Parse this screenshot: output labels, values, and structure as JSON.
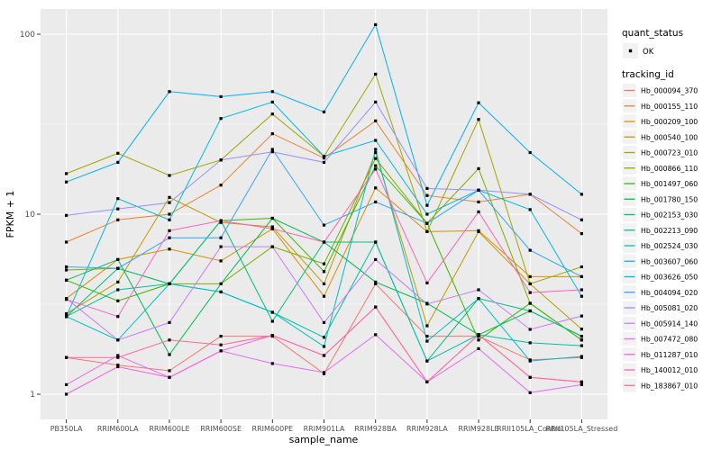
{
  "chart_data": {
    "type": "line",
    "title": "",
    "xlabel": "sample_name",
    "ylabel": "FPKM + 1",
    "y_scale": "log10",
    "y_ticks": [
      1,
      10,
      100
    ],
    "y_minor_breaks": [
      3.1623,
      31.623
    ],
    "ylim": [
      0.85,
      140
    ],
    "grid": true,
    "legend_position": "right",
    "categories": [
      "PB350LA",
      "RRIM600LA",
      "RRIM600LE",
      "RRIM600SE",
      "RRIM600PE",
      "RRIM901LA",
      "RRIM928BA",
      "RRIM928LA",
      "RRIM928LE",
      "RRII105LA_Control",
      "RRII105LA_Stressed"
    ],
    "legend": {
      "quant_status_title": "quant_status",
      "ok_label": "OK",
      "tracking_title": "tracking_id"
    },
    "series": [
      {
        "name": "Hb_000094_370",
        "color": "#F8766D",
        "values": [
          1.6,
          1.45,
          1.35,
          2.1,
          2.1,
          1.3,
          4.1,
          2.1,
          2.1,
          1.55,
          1.6
        ]
      },
      {
        "name": "Hb_000155_110",
        "color": "#EA8331",
        "values": [
          7.0,
          9.3,
          10.0,
          14.5,
          28.0,
          20.5,
          33.0,
          12.7,
          11.7,
          12.9,
          7.8
        ]
      },
      {
        "name": "Hb_000209_100",
        "color": "#D89000",
        "values": [
          3.4,
          5.6,
          6.4,
          5.5,
          8.3,
          3.5,
          14.0,
          8.0,
          8.1,
          4.5,
          4.5
        ]
      },
      {
        "name": "Hb_000540_100",
        "color": "#C09B00",
        "values": [
          2.8,
          4.2,
          12.4,
          9.0,
          8.5,
          4.1,
          22.0,
          2.4,
          8.0,
          4.1,
          2.3
        ]
      },
      {
        "name": "Hb_000723_010",
        "color": "#A3A500",
        "values": [
          16.8,
          21.8,
          16.4,
          20.0,
          36.0,
          21.0,
          60.0,
          8.0,
          33.6,
          4.1,
          5.1
        ]
      },
      {
        "name": "Hb_000866_110",
        "color": "#7CAE00",
        "values": [
          4.9,
          5.0,
          4.1,
          4.1,
          6.6,
          5.3,
          20.4,
          8.9,
          17.9,
          3.2,
          2.0
        ]
      },
      {
        "name": "Hb_001497_060",
        "color": "#39B600",
        "values": [
          4.3,
          3.3,
          4.1,
          9.2,
          9.5,
          4.8,
          18.6,
          8.9,
          2.0,
          3.2,
          2.0
        ]
      },
      {
        "name": "Hb_001780_150",
        "color": "#00BB4E",
        "values": [
          4.3,
          5.6,
          1.66,
          4.1,
          9.5,
          7.0,
          4.2,
          3.2,
          2.14,
          2.9,
          2.1
        ]
      },
      {
        "name": "Hb_002153_030",
        "color": "#00BF7D",
        "values": [
          2.7,
          5.0,
          4.1,
          9.2,
          2.54,
          7.0,
          7.0,
          1.53,
          3.4,
          2.9,
          2.1
        ]
      },
      {
        "name": "Hb_002213_090",
        "color": "#00C1A3",
        "values": [
          2.7,
          3.8,
          4.1,
          3.7,
          2.85,
          2.07,
          7.0,
          1.53,
          2.14,
          1.93,
          1.86
        ]
      },
      {
        "name": "Hb_002524_030",
        "color": "#00BFC4",
        "values": [
          2.7,
          2.0,
          4.1,
          3.7,
          2.85,
          1.84,
          22.9,
          1.97,
          3.4,
          1.53,
          1.62
        ]
      },
      {
        "name": "Hb_003607_060",
        "color": "#00BAE0",
        "values": [
          2.7,
          12.2,
          9.3,
          34.0,
          42.0,
          21.0,
          25.7,
          10.0,
          13.6,
          10.6,
          3.5
        ]
      },
      {
        "name": "Hb_003626_050",
        "color": "#00B0F6",
        "values": [
          15.1,
          19.4,
          48.0,
          45.0,
          48.0,
          37.0,
          113.0,
          11.2,
          41.6,
          22.0,
          12.9
        ]
      },
      {
        "name": "Hb_004094_020",
        "color": "#35A2FF",
        "values": [
          5.1,
          5.0,
          7.4,
          7.4,
          22.9,
          8.7,
          11.7,
          8.9,
          13.6,
          6.3,
          4.5
        ]
      },
      {
        "name": "Hb_005081_020",
        "color": "#9590FF",
        "values": [
          9.85,
          10.7,
          11.6,
          20.0,
          22.2,
          19.4,
          42.0,
          13.9,
          13.6,
          12.9,
          9.3
        ]
      },
      {
        "name": "Hb_005914_140",
        "color": "#C77CFF",
        "values": [
          3.4,
          2.0,
          2.5,
          6.6,
          6.6,
          2.5,
          5.6,
          3.17,
          3.8,
          2.29,
          2.72
        ]
      },
      {
        "name": "Hb_007472_080",
        "color": "#E76BF3",
        "values": [
          1.13,
          1.64,
          1.24,
          1.74,
          1.48,
          1.32,
          2.14,
          1.17,
          1.79,
          1.02,
          1.13
        ]
      },
      {
        "name": "Hb_011287_010",
        "color": "#FA62DB",
        "values": [
          1.0,
          1.42,
          1.24,
          1.74,
          2.12,
          1.64,
          3.05,
          1.17,
          2.14,
          1.24,
          1.17
        ]
      },
      {
        "name": "Hb_140012_010",
        "color": "#FF62BC",
        "values": [
          3.36,
          2.7,
          8.1,
          9.2,
          8.3,
          7.0,
          17.8,
          4.15,
          10.3,
          3.67,
          3.8
        ]
      },
      {
        "name": "Hb_183867_010",
        "color": "#FF6A98",
        "values": [
          1.6,
          1.6,
          2.0,
          1.88,
          2.12,
          1.64,
          3.05,
          1.17,
          2.14,
          1.24,
          1.17
        ]
      }
    ]
  },
  "style_colors": {
    "panel_bg": "#EBEBEB",
    "grid_line": "#FFFFFF",
    "legend_key_bg": "#F2F2F2",
    "axis_text": "#4D4D4D",
    "tick_mark": "#333333",
    "point": "#000000"
  }
}
